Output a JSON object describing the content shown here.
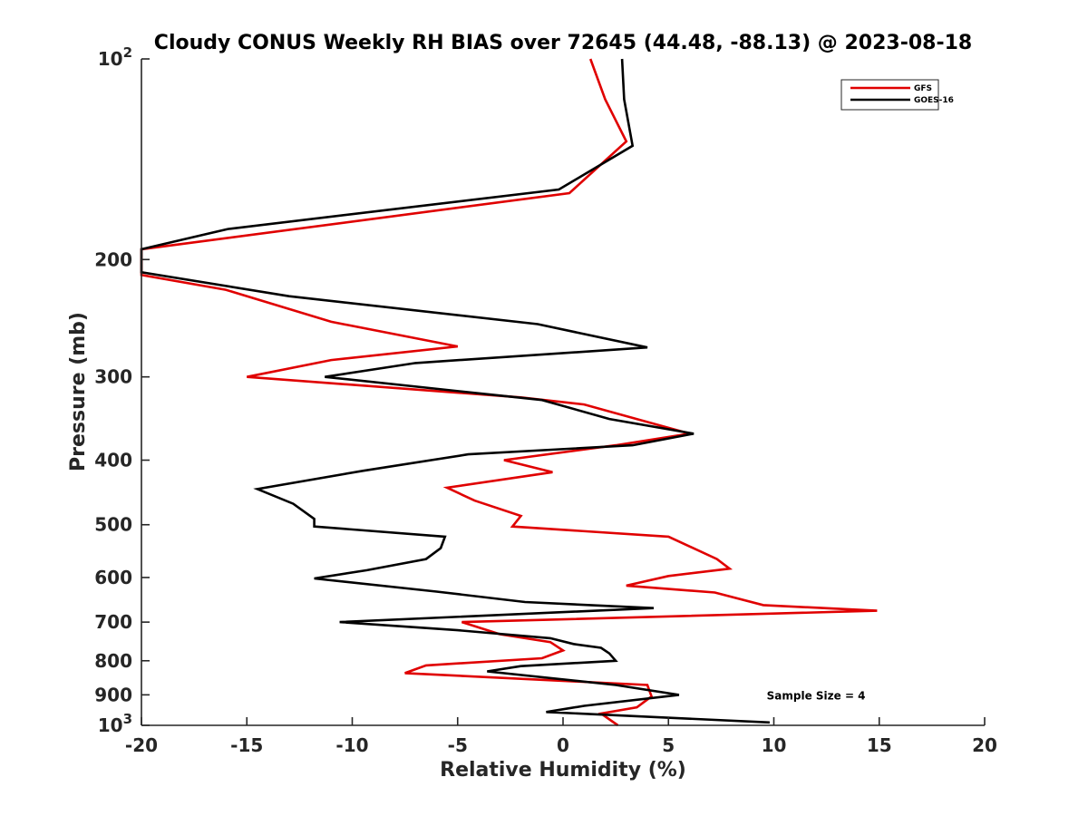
{
  "chart_data": {
    "type": "line",
    "title": "Cloudy CONUS Weekly RH BIAS over 72645 (44.48, -88.13) @ 2023-08-18",
    "xlabel": "Relative Humidity (%)",
    "ylabel": "Pressure (mb)",
    "xlim": [
      -20,
      20
    ],
    "ylim": [
      100,
      1000
    ],
    "y_scale": "log",
    "y_reversed": true,
    "grid": false,
    "legend_position": "top-right",
    "x_ticks": [
      {
        "value": -20,
        "label": "-20"
      },
      {
        "value": -15,
        "label": "-15"
      },
      {
        "value": -10,
        "label": "-10"
      },
      {
        "value": -5,
        "label": "-5"
      },
      {
        "value": 0,
        "label": "0"
      },
      {
        "value": 5,
        "label": "5"
      },
      {
        "value": 10,
        "label": "10"
      },
      {
        "value": 15,
        "label": "15"
      },
      {
        "value": 20,
        "label": "20"
      }
    ],
    "y_ticks": [
      {
        "value": 100,
        "base": "10",
        "exp": "2"
      },
      {
        "value": 200,
        "base": "200",
        "exp": ""
      },
      {
        "value": 300,
        "base": "300",
        "exp": ""
      },
      {
        "value": 400,
        "base": "400",
        "exp": ""
      },
      {
        "value": 500,
        "base": "500",
        "exp": ""
      },
      {
        "value": 600,
        "base": "600",
        "exp": ""
      },
      {
        "value": 700,
        "base": "700",
        "exp": ""
      },
      {
        "value": 800,
        "base": "800",
        "exp": ""
      },
      {
        "value": 900,
        "base": "900",
        "exp": ""
      },
      {
        "value": 1000,
        "base": "10",
        "exp": "3"
      }
    ],
    "series": [
      {
        "name": "GFS",
        "color": "#e00000",
        "points": [
          {
            "x": 1.3,
            "p": 100
          },
          {
            "x": 2.0,
            "p": 115
          },
          {
            "x": 3.0,
            "p": 133
          },
          {
            "x": 0.3,
            "p": 159
          },
          {
            "x": -20.0,
            "p": 193
          },
          {
            "x": -20.0,
            "p": 211
          },
          {
            "x": -16.0,
            "p": 222
          },
          {
            "x": -11.0,
            "p": 248
          },
          {
            "x": -5.0,
            "p": 270
          },
          {
            "x": -11.0,
            "p": 283
          },
          {
            "x": -15.0,
            "p": 300
          },
          {
            "x": -2.0,
            "p": 322
          },
          {
            "x": 1.0,
            "p": 330
          },
          {
            "x": 6.0,
            "p": 365
          },
          {
            "x": 2.5,
            "p": 380
          },
          {
            "x": -2.8,
            "p": 400
          },
          {
            "x": -0.5,
            "p": 417
          },
          {
            "x": -5.5,
            "p": 440
          },
          {
            "x": -4.2,
            "p": 460
          },
          {
            "x": -2.0,
            "p": 485
          },
          {
            "x": -2.4,
            "p": 503
          },
          {
            "x": 5.0,
            "p": 521
          },
          {
            "x": 7.3,
            "p": 563
          },
          {
            "x": 7.9,
            "p": 582
          },
          {
            "x": 5.0,
            "p": 597
          },
          {
            "x": 3.0,
            "p": 617
          },
          {
            "x": 7.2,
            "p": 632
          },
          {
            "x": 9.5,
            "p": 660
          },
          {
            "x": 14.9,
            "p": 673
          },
          {
            "x": -4.8,
            "p": 700
          },
          {
            "x": -3.0,
            "p": 730
          },
          {
            "x": -0.6,
            "p": 750
          },
          {
            "x": 0.0,
            "p": 772
          },
          {
            "x": -1.0,
            "p": 793
          },
          {
            "x": -6.5,
            "p": 813
          },
          {
            "x": -7.5,
            "p": 835
          },
          {
            "x": 4.0,
            "p": 870
          },
          {
            "x": 4.2,
            "p": 905
          },
          {
            "x": 3.5,
            "p": 940
          },
          {
            "x": 1.8,
            "p": 960
          },
          {
            "x": 2.6,
            "p": 1000
          }
        ]
      },
      {
        "name": "GOES-16",
        "color": "#000000",
        "points": [
          {
            "x": 2.8,
            "p": 100
          },
          {
            "x": 2.9,
            "p": 115
          },
          {
            "x": 3.3,
            "p": 135
          },
          {
            "x": -0.2,
            "p": 157
          },
          {
            "x": -15.9,
            "p": 180
          },
          {
            "x": -20.0,
            "p": 193
          },
          {
            "x": -20.0,
            "p": 209
          },
          {
            "x": -13.0,
            "p": 227
          },
          {
            "x": -1.2,
            "p": 250
          },
          {
            "x": 4.0,
            "p": 271
          },
          {
            "x": -7.0,
            "p": 286
          },
          {
            "x": -11.3,
            "p": 300
          },
          {
            "x": -1.0,
            "p": 325
          },
          {
            "x": 2.2,
            "p": 347
          },
          {
            "x": 6.2,
            "p": 365
          },
          {
            "x": 3.3,
            "p": 380
          },
          {
            "x": -4.5,
            "p": 392
          },
          {
            "x": -9.5,
            "p": 415
          },
          {
            "x": -14.5,
            "p": 442
          },
          {
            "x": -12.8,
            "p": 465
          },
          {
            "x": -11.8,
            "p": 490
          },
          {
            "x": -11.8,
            "p": 503
          },
          {
            "x": -5.6,
            "p": 521
          },
          {
            "x": -5.8,
            "p": 542
          },
          {
            "x": -6.5,
            "p": 563
          },
          {
            "x": -9.3,
            "p": 585
          },
          {
            "x": -11.8,
            "p": 602
          },
          {
            "x": -6.0,
            "p": 630
          },
          {
            "x": -1.8,
            "p": 653
          },
          {
            "x": 4.3,
            "p": 667
          },
          {
            "x": -10.6,
            "p": 700
          },
          {
            "x": -5.0,
            "p": 720
          },
          {
            "x": -0.6,
            "p": 740
          },
          {
            "x": 0.5,
            "p": 755
          },
          {
            "x": 1.8,
            "p": 765
          },
          {
            "x": 2.2,
            "p": 780
          },
          {
            "x": 2.5,
            "p": 800
          },
          {
            "x": -2.0,
            "p": 815
          },
          {
            "x": -3.6,
            "p": 830
          },
          {
            "x": 2.5,
            "p": 870
          },
          {
            "x": 5.5,
            "p": 900
          },
          {
            "x": 1.0,
            "p": 935
          },
          {
            "x": -0.8,
            "p": 955
          },
          {
            "x": 9.8,
            "p": 990
          }
        ]
      }
    ],
    "annotations": [
      {
        "text": "Sample Size = 4",
        "x": 12.5,
        "p": 900
      }
    ]
  }
}
